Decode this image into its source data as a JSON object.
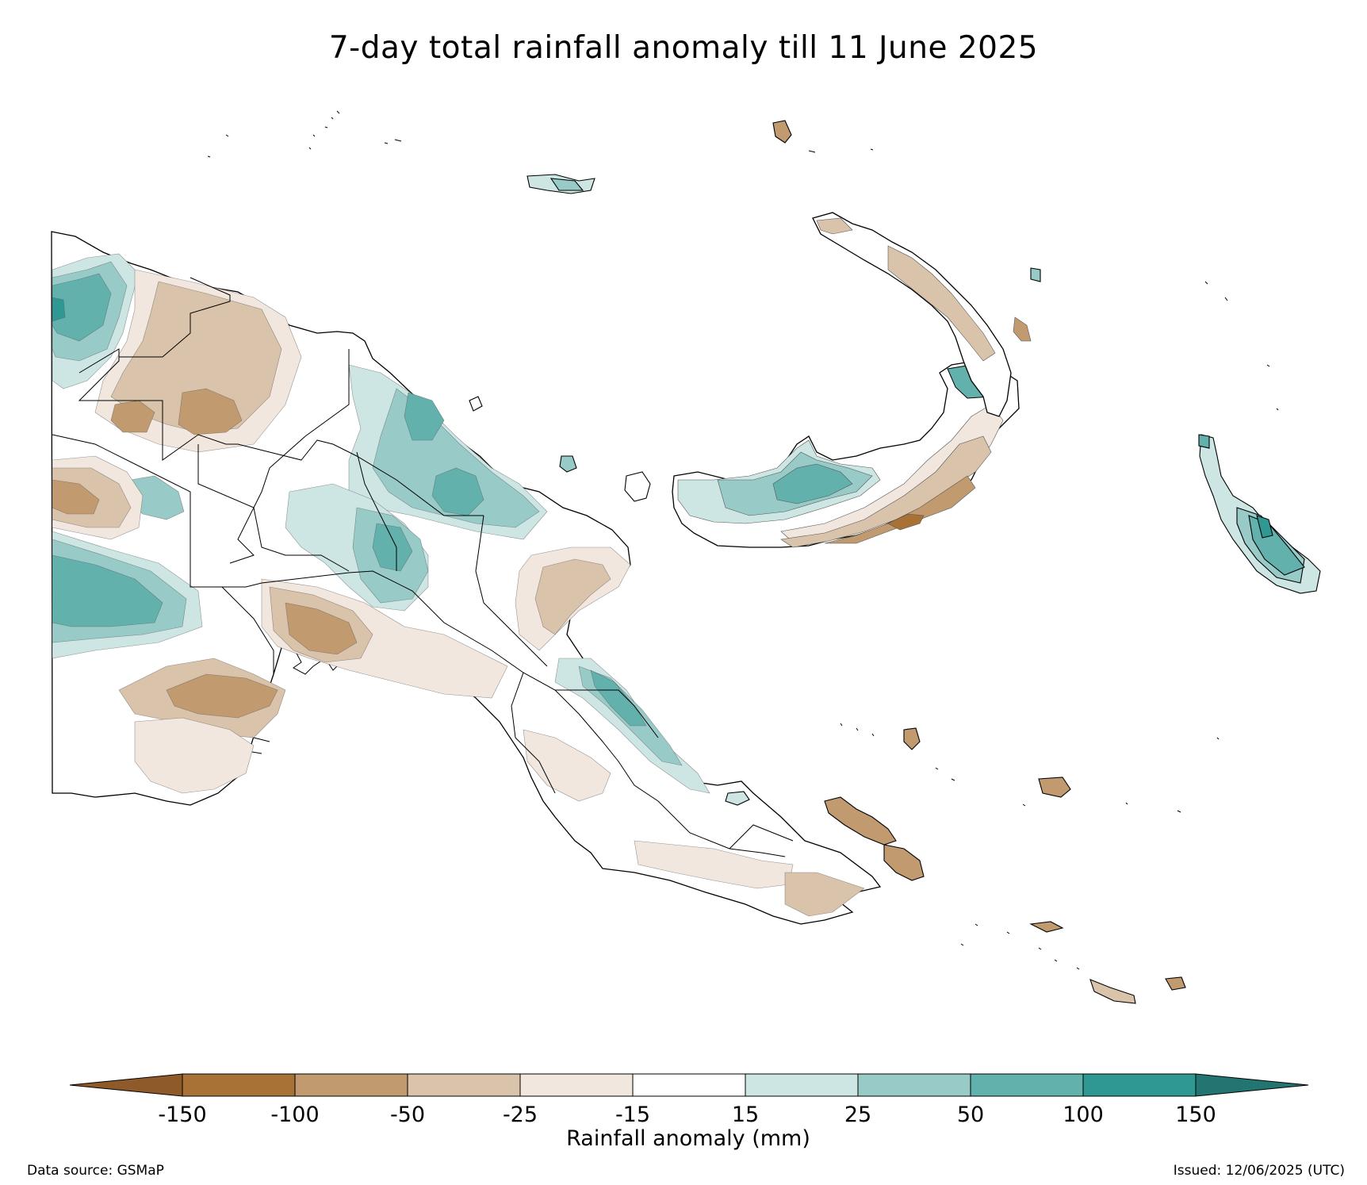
{
  "title": "7-day total rainfall anomaly till 11 June 2025",
  "colorbar": {
    "label": "Rainfall anomaly (mm)",
    "ticks": [
      "-150",
      "-100",
      "-50",
      "-25",
      "-15",
      "15",
      "25",
      "50",
      "100",
      "150"
    ],
    "colors": {
      "below_-150": "#8f5a29",
      "-150_-100": "#a87237",
      "-100_-50": "#c29a6f",
      "-50_-25": "#dac3ab",
      "-25_-15": "#f1e7de",
      "-15_15": "#ffffff",
      "15_25": "#cde6e4",
      "25_50": "#98cbc8",
      "50_100": "#62b1ad",
      "100_150": "#2f9893",
      "above_150": "#237571"
    }
  },
  "footer": {
    "source": "Data source: GSMaP",
    "issued": "Issued: 12/06/2025 (UTC)"
  }
}
